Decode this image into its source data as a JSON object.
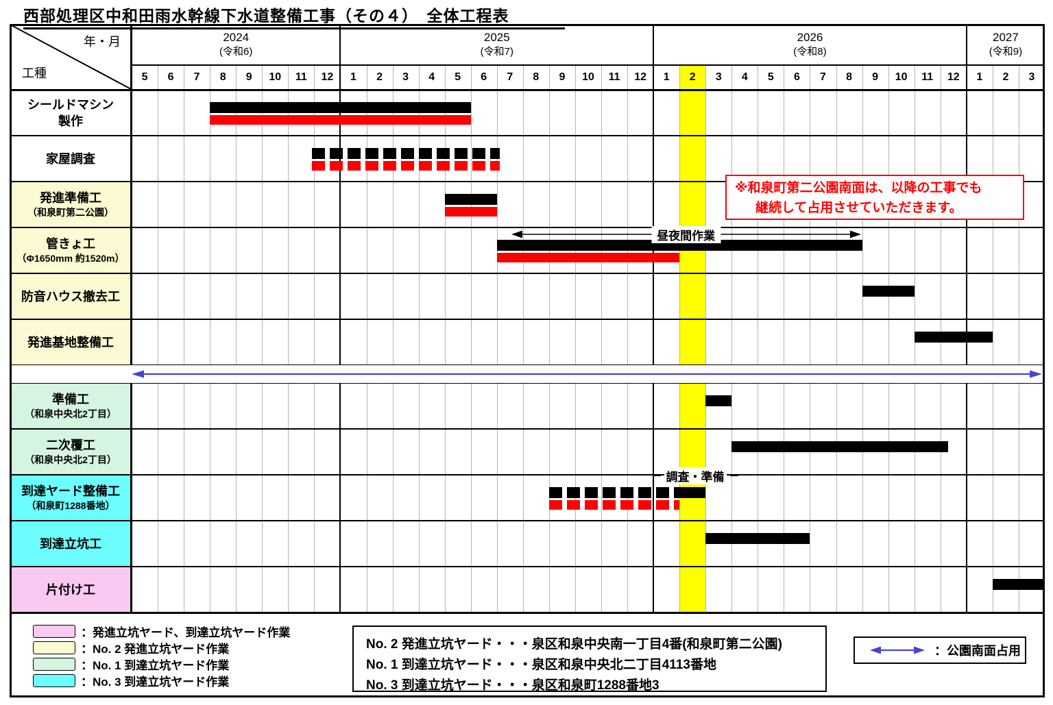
{
  "title": "西部処理区中和田雨水幹線下水道整備工事（その４）　全体工程表",
  "chart_data": {
    "type": "gantt",
    "unit": "month",
    "corner": {
      "top_right": "年・月",
      "bottom_left": "工種"
    },
    "years": [
      {
        "label": "2024",
        "era": "(令和6)",
        "months": [
          5,
          6,
          7,
          8,
          9,
          10,
          11,
          12
        ]
      },
      {
        "label": "2025",
        "era": "(令和7)",
        "months": [
          1,
          2,
          3,
          4,
          5,
          6,
          7,
          8,
          9,
          10,
          11,
          12
        ]
      },
      {
        "label": "2026",
        "era": "(令和8)",
        "months": [
          1,
          2,
          3,
          4,
          5,
          6,
          7,
          8,
          9,
          10,
          11,
          12
        ]
      },
      {
        "label": "2027",
        "era": "(令和9)",
        "months": [
          1,
          2,
          3
        ]
      }
    ],
    "highlight_column": {
      "year": "2026",
      "month": 2,
      "color": "#FFFF00"
    },
    "bar_colors": {
      "black": "#000000",
      "red": "#FF0000"
    },
    "separator_band": {
      "after_row": 6,
      "color": "#4444CC"
    },
    "rows": [
      {
        "bg": "#FFFFFF",
        "lines": [
          {
            "text": "シールドマシン",
            "size": "lg"
          },
          {
            "text": "製作",
            "size": "lg"
          }
        ],
        "bars": [
          {
            "color": "#000000",
            "style": "solid",
            "line": 1,
            "start": 3,
            "end": 13,
            "from": "2024-08",
            "to": "2025-05"
          },
          {
            "color": "#FF0000",
            "style": "solid",
            "line": 2,
            "start": 3,
            "end": 13,
            "from": "2024-08",
            "to": "2025-05"
          }
        ]
      },
      {
        "bg": "#FFFFFF",
        "lines": [
          {
            "text": "家屋調査",
            "size": "lg"
          }
        ],
        "bars": [
          {
            "color": "#000000",
            "style": "dashed",
            "line": 1,
            "start": 6.9,
            "end": 14.1,
            "from": "2024-12",
            "to": "2025-06"
          },
          {
            "color": "#FF0000",
            "style": "dashed",
            "line": 2,
            "start": 6.9,
            "end": 14.1,
            "from": "2024-12",
            "to": "2025-06"
          }
        ]
      },
      {
        "bg": "#FCFAD2",
        "lines": [
          {
            "text": "発進準備工",
            "size": "lg"
          },
          {
            "text": "（和泉町第二公園）",
            "size": "sm"
          }
        ],
        "bars": [
          {
            "color": "#000000",
            "style": "solid",
            "line": 1,
            "start": 12,
            "end": 14,
            "from": "2025-05",
            "to": "2025-06"
          },
          {
            "color": "#FF0000",
            "style": "solid",
            "line": 2,
            "start": 12,
            "end": 14,
            "from": "2025-05",
            "to": "2025-06"
          }
        ]
      },
      {
        "bg": "#FCFAD2",
        "lines": [
          {
            "text": "管きょ工",
            "size": "lg"
          },
          {
            "text": "（Φ1650mm 約1520m）",
            "size": "sm"
          }
        ],
        "annotation": {
          "type": "span-arrow",
          "text": "昼夜間作業",
          "start": 14.55,
          "end": 27.95
        },
        "bars": [
          {
            "color": "#000000",
            "style": "solid",
            "line": 1,
            "start": 14,
            "end": 28,
            "from": "2025-07",
            "to": "2026-08"
          },
          {
            "color": "#FF0000",
            "style": "solid",
            "line": 2,
            "start": 14,
            "end": 21,
            "from": "2025-07",
            "to": "2026-01"
          }
        ]
      },
      {
        "bg": "#FCFAD2",
        "lines": [
          {
            "text": "防音ハウス撤去工",
            "size": "lg"
          }
        ],
        "bars": [
          {
            "color": "#000000",
            "style": "solid",
            "line": 1,
            "start": 28,
            "end": 30,
            "from": "2026-09",
            "to": "2026-10"
          }
        ]
      },
      {
        "bg": "#FCFAD2",
        "lines": [
          {
            "text": "発進基地整備工",
            "size": "lg"
          }
        ],
        "bars": [
          {
            "color": "#000000",
            "style": "solid",
            "line": 1,
            "start": 30,
            "end": 33,
            "from": "2026-11",
            "to": "2027-01"
          }
        ]
      },
      {
        "bg": "#D5F5E0",
        "lines": [
          {
            "text": "準備工",
            "size": "lg"
          },
          {
            "text": "（和泉中央北2丁目）",
            "size": "sm"
          }
        ],
        "bars": [
          {
            "color": "#000000",
            "style": "solid",
            "line": 1,
            "start": 22,
            "end": 23,
            "from": "2026-03",
            "to": "2026-03"
          }
        ]
      },
      {
        "bg": "#D5F5E0",
        "lines": [
          {
            "text": "二次覆工",
            "size": "lg"
          },
          {
            "text": "（和泉中央北2丁目）",
            "size": "sm"
          }
        ],
        "bars": [
          {
            "color": "#000000",
            "style": "solid",
            "line": 1,
            "start": 23,
            "end": 31.3,
            "from": "2026-04",
            "to": "2026-12"
          }
        ]
      },
      {
        "bg": "#6CFEFE",
        "lines": [
          {
            "text": "到達ヤード整備工",
            "size": "lg"
          },
          {
            "text": "（和泉町1288番地）",
            "size": "sm"
          }
        ],
        "annotation": {
          "type": "side-dash-label",
          "text": "調査・準備",
          "start": 19.9,
          "end": 23.3
        },
        "bars": [
          {
            "color": "#000000",
            "style": "dashed",
            "line": 1,
            "start": 16,
            "end": 21,
            "from": "2025-09",
            "to": "2026-01"
          },
          {
            "color": "#000000",
            "style": "solid",
            "line": 1,
            "start": 21,
            "end": 22,
            "from": "2026-02",
            "to": "2026-02"
          },
          {
            "color": "#FF0000",
            "style": "dashed",
            "line": 2,
            "start": 16,
            "end": 21,
            "from": "2025-09",
            "to": "2026-01"
          }
        ]
      },
      {
        "bg": "#6CFEFE",
        "lines": [
          {
            "text": "到達立坑工",
            "size": "lg"
          }
        ],
        "bars": [
          {
            "color": "#000000",
            "style": "solid",
            "line": 1,
            "start": 22,
            "end": 26,
            "from": "2026-03",
            "to": "2026-06"
          }
        ]
      },
      {
        "bg": "#F9C9F1",
        "lines": [
          {
            "text": "片付け工",
            "size": "lg"
          }
        ],
        "bars": [
          {
            "color": "#000000",
            "style": "solid",
            "line": 1,
            "start": 33,
            "end": 35,
            "from": "2027-02",
            "to": "2027-03"
          }
        ]
      }
    ]
  },
  "note_box": {
    "line1": "※和泉町第二公園南面は、以降の工事でも",
    "line2": "継続して占用させていただきます。",
    "color": "#FF0000"
  },
  "legend": {
    "items": [
      {
        "color": "#F9C9F1",
        "label": "：発進立坑ヤード、到達立坑ヤード作業"
      },
      {
        "color": "#FCFAD2",
        "label": "：No. 2 発進立坑ヤード作業"
      },
      {
        "color": "#D5F5E0",
        "label": "：No. 1 到達立坑ヤード作業"
      },
      {
        "color": "#6CFEFE",
        "label": "：No. 3 到達立坑ヤード作業"
      }
    ]
  },
  "addresses": {
    "lines": [
      "No. 2 発進立坑ヤード・・・泉区和泉中央南一丁目4番(和泉町第二公園)",
      "No. 1 到達立坑ヤード・・・泉区和泉中央北二丁目4113番地",
      "No. 3 到達立坑ヤード・・・泉区和泉町1288番地3"
    ]
  },
  "arrow_legend": {
    "label": "：公園南面占用",
    "color": "#4444CC"
  }
}
